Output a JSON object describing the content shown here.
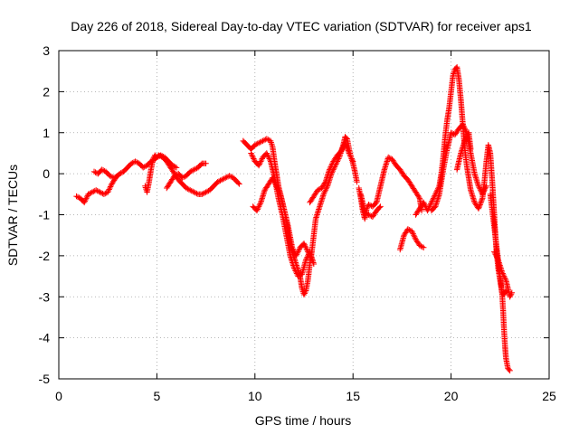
{
  "chart_data": {
    "type": "scatter",
    "title": "Day 226 of 2018, Sidereal Day-to-day VTEC variation (SDTVAR) for receiver aps1",
    "xlabel": "GPS time / hours",
    "ylabel": "SDTVAR / TECUs",
    "xlim": [
      0,
      25
    ],
    "ylim": [
      -5,
      3
    ],
    "xticks": [
      "0",
      "5",
      "10",
      "15",
      "20",
      "25"
    ],
    "yticks": [
      "-5",
      "-4",
      "-3",
      "-2",
      "-1",
      "0",
      "1",
      "2",
      "3"
    ],
    "grid": true,
    "marker": "+",
    "color": "#ff0000",
    "series": [
      {
        "segments": [
          [
            [
              0.9,
              -0.55
            ],
            [
              1.1,
              -0.6
            ],
            [
              1.3,
              -0.7
            ],
            [
              1.5,
              -0.5
            ],
            [
              1.7,
              -0.45
            ],
            [
              1.9,
              -0.4
            ],
            [
              2.1,
              -0.45
            ],
            [
              2.3,
              -0.5
            ],
            [
              2.5,
              -0.45
            ],
            [
              2.7,
              -0.25
            ],
            [
              2.9,
              -0.1
            ],
            [
              3.1,
              0.0
            ],
            [
              3.3,
              0.05
            ],
            [
              3.5,
              0.15
            ],
            [
              3.7,
              0.25
            ],
            [
              3.9,
              0.3
            ],
            [
              4.1,
              0.25
            ],
            [
              4.3,
              0.15
            ],
            [
              4.5,
              0.2
            ],
            [
              4.7,
              0.3
            ],
            [
              4.9,
              0.35
            ],
            [
              5.1,
              0.45
            ],
            [
              5.3,
              0.4
            ],
            [
              5.5,
              0.3
            ],
            [
              5.7,
              0.15
            ],
            [
              5.9,
              0.0
            ],
            [
              6.1,
              -0.15
            ],
            [
              6.3,
              -0.25
            ],
            [
              6.5,
              -0.35
            ],
            [
              6.7,
              -0.4
            ],
            [
              6.9,
              -0.45
            ],
            [
              7.1,
              -0.5
            ],
            [
              7.3,
              -0.5
            ],
            [
              7.5,
              -0.45
            ],
            [
              7.7,
              -0.4
            ],
            [
              7.9,
              -0.3
            ],
            [
              8.1,
              -0.2
            ],
            [
              8.3,
              -0.15
            ],
            [
              8.5,
              -0.1
            ],
            [
              8.7,
              -0.05
            ],
            [
              8.9,
              -0.1
            ],
            [
              9.1,
              -0.2
            ],
            [
              9.2,
              -0.25
            ]
          ],
          [
            [
              1.8,
              0.05
            ],
            [
              2.0,
              0.0
            ],
            [
              2.2,
              0.1
            ],
            [
              2.4,
              0.05
            ],
            [
              2.6,
              -0.05
            ],
            [
              2.8,
              -0.1
            ],
            [
              3.0,
              -0.05
            ]
          ],
          [
            [
              4.4,
              -0.3
            ],
            [
              4.5,
              -0.45
            ],
            [
              4.6,
              -0.2
            ],
            [
              4.7,
              0.1
            ],
            [
              4.8,
              0.35
            ],
            [
              4.9,
              0.45
            ],
            [
              5.0,
              0.4
            ],
            [
              5.2,
              0.45
            ],
            [
              5.4,
              0.4
            ],
            [
              5.6,
              0.3
            ],
            [
              5.8,
              0.2
            ],
            [
              6.0,
              0.15
            ]
          ],
          [
            [
              5.5,
              -0.35
            ],
            [
              5.7,
              -0.2
            ],
            [
              5.9,
              -0.05
            ],
            [
              6.1,
              0.0
            ],
            [
              6.3,
              -0.1
            ],
            [
              6.5,
              -0.05
            ],
            [
              6.7,
              0.05
            ],
            [
              6.9,
              0.1
            ],
            [
              7.1,
              0.15
            ],
            [
              7.3,
              0.25
            ],
            [
              7.5,
              0.25
            ]
          ],
          [
            [
              9.4,
              0.8
            ],
            [
              9.6,
              0.7
            ],
            [
              9.8,
              0.6
            ],
            [
              10.0,
              0.7
            ],
            [
              10.2,
              0.75
            ],
            [
              10.4,
              0.8
            ],
            [
              10.6,
              0.85
            ],
            [
              10.8,
              0.8
            ],
            [
              10.9,
              0.65
            ],
            [
              11.0,
              0.3
            ],
            [
              11.1,
              0.0
            ],
            [
              11.2,
              -0.3
            ],
            [
              11.4,
              -0.7
            ],
            [
              11.6,
              -1.1
            ],
            [
              11.7,
              -1.5
            ],
            [
              11.9,
              -1.9
            ],
            [
              12.1,
              -2.2
            ],
            [
              12.3,
              -2.5
            ],
            [
              12.4,
              -2.8
            ],
            [
              12.5,
              -2.95
            ],
            [
              12.6,
              -2.85
            ],
            [
              12.7,
              -2.6
            ],
            [
              12.8,
              -2.2
            ],
            [
              12.9,
              -1.9
            ],
            [
              13.0,
              -1.5
            ],
            [
              13.1,
              -1.1
            ],
            [
              13.3,
              -0.8
            ],
            [
              13.5,
              -0.5
            ],
            [
              13.7,
              -0.3
            ],
            [
              13.9,
              0.0
            ],
            [
              14.1,
              0.2
            ],
            [
              14.3,
              0.4
            ],
            [
              14.5,
              0.7
            ],
            [
              14.6,
              0.9
            ],
            [
              14.7,
              0.85
            ],
            [
              14.8,
              0.6
            ],
            [
              14.9,
              0.4
            ],
            [
              15.0,
              0.25
            ],
            [
              15.1,
              0.05
            ],
            [
              15.2,
              -0.2
            ]
          ],
          [
            [
              9.8,
              0.5
            ],
            [
              10.0,
              0.3
            ],
            [
              10.2,
              0.2
            ],
            [
              10.4,
              0.4
            ],
            [
              10.6,
              0.5
            ],
            [
              10.8,
              0.3
            ],
            [
              11.0,
              -0.1
            ],
            [
              11.2,
              -0.6
            ],
            [
              11.4,
              -1.0
            ],
            [
              11.6,
              -1.5
            ],
            [
              11.8,
              -2.0
            ],
            [
              12.0,
              -2.3
            ],
            [
              12.2,
              -2.5
            ],
            [
              12.4,
              -2.45
            ],
            [
              12.6,
              -2.1
            ],
            [
              12.8,
              -1.9
            ],
            [
              13.0,
              -2.2
            ]
          ],
          [
            [
              9.9,
              -0.8
            ],
            [
              10.1,
              -0.9
            ],
            [
              10.3,
              -0.7
            ],
            [
              10.5,
              -0.4
            ],
            [
              10.7,
              -0.25
            ],
            [
              10.9,
              -0.1
            ],
            [
              11.1,
              -0.3
            ],
            [
              11.3,
              -0.5
            ],
            [
              11.5,
              -0.9
            ],
            [
              11.7,
              -1.3
            ],
            [
              11.9,
              -1.8
            ],
            [
              12.1,
              -2.0
            ],
            [
              12.3,
              -1.8
            ],
            [
              12.5,
              -1.7
            ],
            [
              12.7,
              -1.9
            ],
            [
              12.9,
              -2.1
            ]
          ],
          [
            [
              12.8,
              -0.7
            ],
            [
              13.0,
              -0.55
            ],
            [
              13.2,
              -0.4
            ],
            [
              13.4,
              -0.35
            ],
            [
              13.6,
              -0.2
            ],
            [
              13.8,
              0.1
            ],
            [
              14.0,
              0.3
            ],
            [
              14.2,
              0.45
            ],
            [
              14.4,
              0.55
            ],
            [
              14.6,
              0.75
            ],
            [
              14.8,
              0.5
            ],
            [
              15.0,
              0.3
            ]
          ],
          [
            [
              15.3,
              -0.35
            ],
            [
              15.4,
              -0.6
            ],
            [
              15.5,
              -0.9
            ],
            [
              15.6,
              -1.1
            ],
            [
              15.7,
              -0.85
            ],
            [
              15.8,
              -0.75
            ],
            [
              16.0,
              -0.8
            ],
            [
              16.2,
              -0.7
            ],
            [
              16.4,
              -0.3
            ],
            [
              16.6,
              0.1
            ],
            [
              16.8,
              0.4
            ],
            [
              17.0,
              0.35
            ],
            [
              17.2,
              0.2
            ],
            [
              17.4,
              0.1
            ],
            [
              17.6,
              -0.05
            ],
            [
              17.8,
              -0.15
            ],
            [
              18.0,
              -0.3
            ],
            [
              18.2,
              -0.45
            ],
            [
              18.4,
              -0.6
            ],
            [
              18.5,
              -0.9
            ]
          ],
          [
            [
              15.4,
              -0.5
            ],
            [
              15.6,
              -0.95
            ],
            [
              15.8,
              -1.0
            ],
            [
              16.0,
              -1.05
            ],
            [
              16.2,
              -0.9
            ],
            [
              16.4,
              -0.8
            ]
          ],
          [
            [
              17.4,
              -1.85
            ],
            [
              17.6,
              -1.5
            ],
            [
              17.8,
              -1.35
            ],
            [
              18.0,
              -1.4
            ],
            [
              18.2,
              -1.6
            ],
            [
              18.4,
              -1.75
            ],
            [
              18.6,
              -1.8
            ]
          ],
          [
            [
              18.2,
              -1.0
            ],
            [
              18.4,
              -0.85
            ],
            [
              18.6,
              -0.7
            ],
            [
              18.8,
              -0.9
            ],
            [
              19.0,
              -0.7
            ],
            [
              19.2,
              -0.5
            ],
            [
              19.4,
              -0.3
            ],
            [
              19.5,
              0.0
            ],
            [
              19.6,
              0.4
            ],
            [
              19.7,
              0.9
            ],
            [
              19.8,
              1.3
            ],
            [
              19.9,
              1.6
            ],
            [
              20.0,
              2.0
            ],
            [
              20.1,
              2.4
            ],
            [
              20.2,
              2.55
            ],
            [
              20.3,
              2.6
            ],
            [
              20.4,
              2.3
            ],
            [
              20.5,
              1.8
            ],
            [
              20.6,
              1.2
            ],
            [
              20.7,
              0.6
            ],
            [
              20.8,
              0.2
            ],
            [
              20.9,
              -0.1
            ],
            [
              21.0,
              -0.4
            ],
            [
              21.2,
              -0.7
            ],
            [
              21.4,
              -0.85
            ],
            [
              21.6,
              -0.6
            ],
            [
              21.7,
              -0.2
            ],
            [
              21.8,
              0.3
            ],
            [
              21.9,
              0.7
            ],
            [
              22.0,
              0.5
            ],
            [
              22.1,
              -0.2
            ],
            [
              22.2,
              -1.0
            ],
            [
              22.3,
              -1.8
            ],
            [
              22.4,
              -2.3
            ],
            [
              22.5,
              -2.6
            ],
            [
              22.6,
              -2.9
            ],
            [
              22.7,
              -2.95
            ],
            [
              22.8,
              -2.85
            ]
          ],
          [
            [
              19.0,
              -0.9
            ],
            [
              19.2,
              -0.8
            ],
            [
              19.4,
              -0.5
            ],
            [
              19.6,
              0.1
            ],
            [
              19.8,
              0.6
            ],
            [
              20.0,
              1.0
            ],
            [
              20.2,
              0.95
            ],
            [
              20.4,
              1.1
            ],
            [
              20.6,
              1.2
            ],
            [
              20.8,
              1.0
            ],
            [
              21.0,
              0.5
            ],
            [
              21.2,
              0.0
            ],
            [
              21.4,
              -0.3
            ],
            [
              21.6,
              -0.5
            ],
            [
              21.8,
              -0.3
            ]
          ],
          [
            [
              20.3,
              0.1
            ],
            [
              20.5,
              0.5
            ],
            [
              20.7,
              0.8
            ],
            [
              20.9,
              1.0
            ],
            [
              21.0,
              0.6
            ]
          ],
          [
            [
              22.0,
              -0.5
            ],
            [
              22.1,
              -0.9
            ],
            [
              22.2,
              -1.3
            ],
            [
              22.3,
              -1.7
            ],
            [
              22.4,
              -2.1
            ],
            [
              22.5,
              -2.5
            ],
            [
              22.6,
              -2.9
            ],
            [
              22.65,
              -3.3
            ],
            [
              22.7,
              -3.8
            ],
            [
              22.75,
              -4.2
            ],
            [
              22.8,
              -4.5
            ],
            [
              22.9,
              -4.75
            ],
            [
              23.0,
              -4.8
            ]
          ],
          [
            [
              22.2,
              -1.9
            ],
            [
              22.4,
              -2.1
            ],
            [
              22.6,
              -2.4
            ],
            [
              22.8,
              -2.6
            ],
            [
              22.9,
              -2.8
            ],
            [
              23.0,
              -3.0
            ],
            [
              23.1,
              -2.9
            ]
          ]
        ]
      }
    ]
  }
}
